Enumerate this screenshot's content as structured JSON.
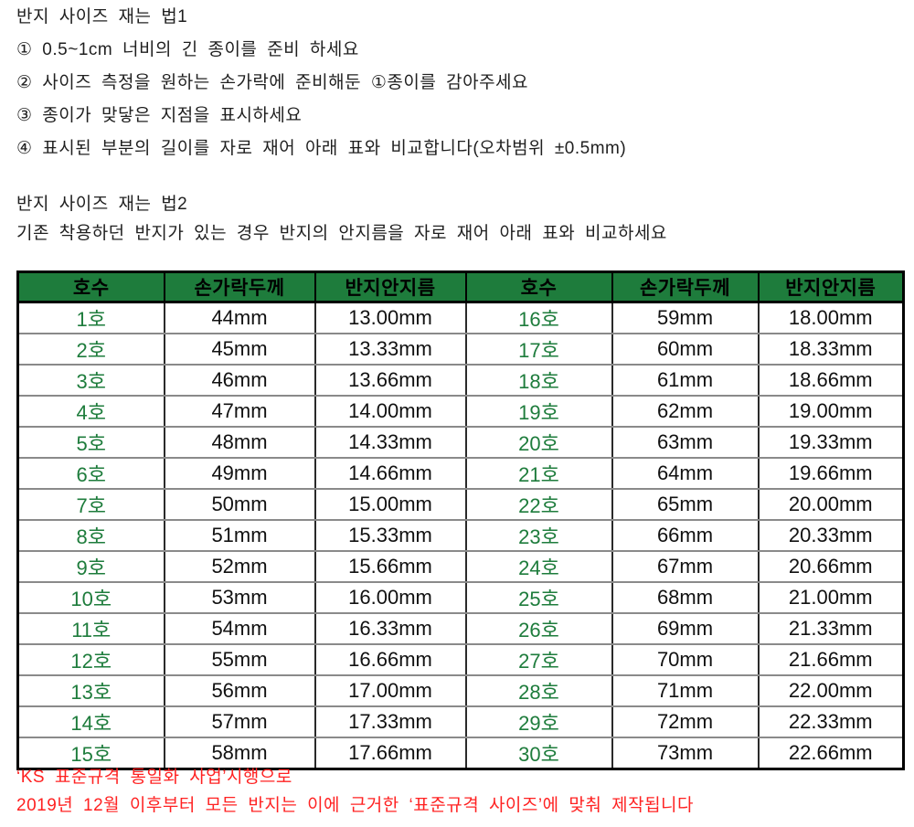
{
  "method1": {
    "title": "반지 사이즈 재는 법1",
    "steps": [
      "① 0.5~1cm 너비의 긴 종이를 준비 하세요",
      "② 사이즈 측정을 원하는 손가락에 준비해둔 ①종이를 감아주세요",
      "③ 종이가 맞닿은 지점을 표시하세요",
      "④ 표시된 부분의 길이를 자로 재어 아래 표와 비교합니다(오차범위 ±0.5mm)"
    ]
  },
  "method2": {
    "title": "반지 사이즈 재는 법2",
    "description": "기존 착용하던 반지가 있는 경우 반지의 안지름을 자로 재어 아래 표와 비교하세요"
  },
  "table": {
    "headers": [
      "호수",
      "손가락두께",
      "반지안지름",
      "호수",
      "손가락두께",
      "반지안지름"
    ],
    "rows": [
      [
        "1호",
        "44mm",
        "13.00mm",
        "16호",
        "59mm",
        "18.00mm"
      ],
      [
        "2호",
        "45mm",
        "13.33mm",
        "17호",
        "60mm",
        "18.33mm"
      ],
      [
        "3호",
        "46mm",
        "13.66mm",
        "18호",
        "61mm",
        "18.66mm"
      ],
      [
        "4호",
        "47mm",
        "14.00mm",
        "19호",
        "62mm",
        "19.00mm"
      ],
      [
        "5호",
        "48mm",
        "14.33mm",
        "20호",
        "63mm",
        "19.33mm"
      ],
      [
        "6호",
        "49mm",
        "14.66mm",
        "21호",
        "64mm",
        "19.66mm"
      ],
      [
        "7호",
        "50mm",
        "15.00mm",
        "22호",
        "65mm",
        "20.00mm"
      ],
      [
        "8호",
        "51mm",
        "15.33mm",
        "23호",
        "66mm",
        "20.33mm"
      ],
      [
        "9호",
        "52mm",
        "15.66mm",
        "24호",
        "67mm",
        "20.66mm"
      ],
      [
        "10호",
        "53mm",
        "16.00mm",
        "25호",
        "68mm",
        "21.00mm"
      ],
      [
        "11호",
        "54mm",
        "16.33mm",
        "26호",
        "69mm",
        "21.33mm"
      ],
      [
        "12호",
        "55mm",
        "16.66mm",
        "27호",
        "70mm",
        "21.66mm"
      ],
      [
        "13호",
        "56mm",
        "17.00mm",
        "28호",
        "71mm",
        "22.00mm"
      ],
      [
        "14호",
        "57mm",
        "17.33mm",
        "29호",
        "72mm",
        "22.33mm"
      ],
      [
        "15호",
        "58mm",
        "17.66mm",
        "30호",
        "73mm",
        "22.66mm"
      ]
    ],
    "colors": {
      "header_bg": "#1e7c3c",
      "size_text": "#1e7c3c"
    }
  },
  "footer": {
    "line1": "‘KS 표준규격 통일화 사업’시행으로",
    "line2": "2019년 12월 이후부터 모든 반지는 이에 근거한 ‘표준규격 사이즈’에 맞춰 제작됩니다",
    "color": "#ff2222"
  }
}
